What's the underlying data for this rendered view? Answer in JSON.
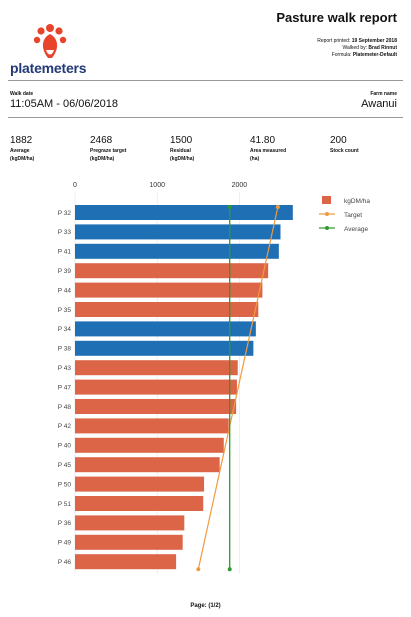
{
  "brand": {
    "name": "platemeters"
  },
  "report": {
    "title": "Pasture walk report",
    "printed_label": "Report printed:",
    "printed_value": "19 September 2018",
    "walked_label": "Walked by:",
    "walked_value": "Brad Rinnut",
    "formula_label": "Formula:",
    "formula_value": "Platemeter-Default"
  },
  "walk": {
    "date_label": "Walk date",
    "date_value": "11:05AM - 06/06/2018",
    "farm_label": "Farm name",
    "farm_value": "Awanui"
  },
  "stats": [
    {
      "value": "1882",
      "label": "Average",
      "unit": "(kgDM/ha)"
    },
    {
      "value": "2468",
      "label": "Pregraze target",
      "unit": "(kgDM/ha)"
    },
    {
      "value": "1500",
      "label": "Residual",
      "unit": "(kgDM/ha)"
    },
    {
      "value": "41.80",
      "label": "Area measured",
      "unit": "(ha)"
    },
    {
      "value": "200",
      "label": "Stock count",
      "unit": ""
    }
  ],
  "colors": {
    "blue": "#1f6fb5",
    "orange": "#dc6548",
    "target": "#f09a3e",
    "average": "#2e9a2e"
  },
  "chart_data": {
    "type": "bar",
    "orientation": "horizontal",
    "x_ticks": [
      "0",
      "1000",
      "2000"
    ],
    "xlim": [
      0,
      2700
    ],
    "categories": [
      "P 32",
      "P 33",
      "P 41",
      "P 39",
      "P 44",
      "P 35",
      "P 34",
      "P 38",
      "P 43",
      "P 47",
      "P 48",
      "P 42",
      "P 40",
      "P 45",
      "P 50",
      "P 51",
      "P 36",
      "P 49",
      "P 46"
    ],
    "values": [
      2650,
      2500,
      2480,
      2350,
      2280,
      2230,
      2200,
      2170,
      1980,
      1970,
      1960,
      1870,
      1810,
      1760,
      1570,
      1560,
      1330,
      1310,
      1230
    ],
    "bar_colors": [
      "blue",
      "blue",
      "blue",
      "orange",
      "orange",
      "orange",
      "blue",
      "blue",
      "orange",
      "orange",
      "orange",
      "orange",
      "orange",
      "orange",
      "orange",
      "orange",
      "orange",
      "orange",
      "orange"
    ],
    "series": [
      {
        "name": "kgDM/ha",
        "type": "bar"
      },
      {
        "name": "Target",
        "type": "line",
        "from": 2468,
        "to": 1500
      },
      {
        "name": "Average",
        "type": "line",
        "value": 1882
      }
    ],
    "legend_position": "right",
    "grid": true
  },
  "footer": {
    "page": "Page: (1/2)"
  }
}
